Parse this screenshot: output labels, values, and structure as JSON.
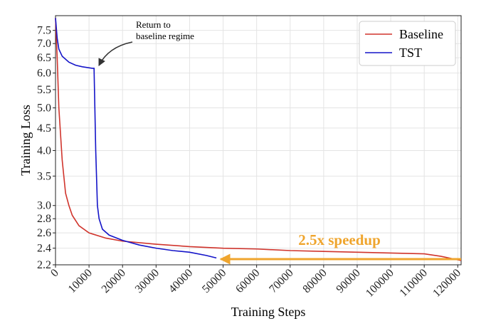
{
  "chart_data": {
    "type": "line",
    "x_label": "Training Steps",
    "y_label": "Training Loss",
    "log_y": true,
    "grid": true,
    "legend_position": "upper right",
    "xlim": [
      0,
      121000
    ],
    "ylim": [
      2.2,
      8.1
    ],
    "xticks": [
      0,
      10000,
      20000,
      30000,
      40000,
      50000,
      60000,
      70000,
      80000,
      90000,
      100000,
      110000,
      120000
    ],
    "yticks": [
      2.2,
      2.4,
      2.6,
      2.8,
      {
        "value": 3,
        "label": "3.0"
      },
      3.5,
      {
        "value": 4,
        "label": "4.0"
      },
      4.5,
      {
        "value": 5,
        "label": "5.0"
      },
      5.5,
      {
        "value": 6,
        "label": "6.0"
      },
      6.5,
      {
        "value": 7,
        "label": "7.0"
      },
      7.5
    ],
    "series": [
      {
        "name": "Baseline",
        "color": "#d0342c",
        "x": [
          0,
          500,
          1000,
          2000,
          3000,
          4000,
          5000,
          7000,
          10000,
          15000,
          20000,
          30000,
          40000,
          50000,
          60000,
          70000,
          80000,
          90000,
          100000,
          110000,
          115000,
          121000
        ],
        "values": [
          8.0,
          6.5,
          5.0,
          3.8,
          3.2,
          3.0,
          2.85,
          2.7,
          2.6,
          2.53,
          2.49,
          2.45,
          2.42,
          2.4,
          2.39,
          2.37,
          2.36,
          2.35,
          2.34,
          2.33,
          2.3,
          2.25
        ]
      },
      {
        "name": "TST",
        "color": "#1414c8",
        "x": [
          0,
          500,
          1000,
          2000,
          4000,
          6000,
          8000,
          11000,
          11500,
          12000,
          12500,
          13000,
          14000,
          16000,
          20000,
          25000,
          30000,
          35000,
          40000,
          45000,
          48000
        ],
        "values": [
          8.0,
          7.2,
          6.8,
          6.55,
          6.35,
          6.25,
          6.2,
          6.15,
          6.15,
          4.0,
          3.0,
          2.8,
          2.65,
          2.57,
          2.5,
          2.44,
          2.4,
          2.37,
          2.35,
          2.31,
          2.28
        ]
      }
    ],
    "annotations": [
      {
        "text": [
          "Return to",
          "baseline regime"
        ]
      },
      {
        "text": [
          "2.5x speedup"
        ],
        "color": "#efa52e"
      }
    ]
  }
}
